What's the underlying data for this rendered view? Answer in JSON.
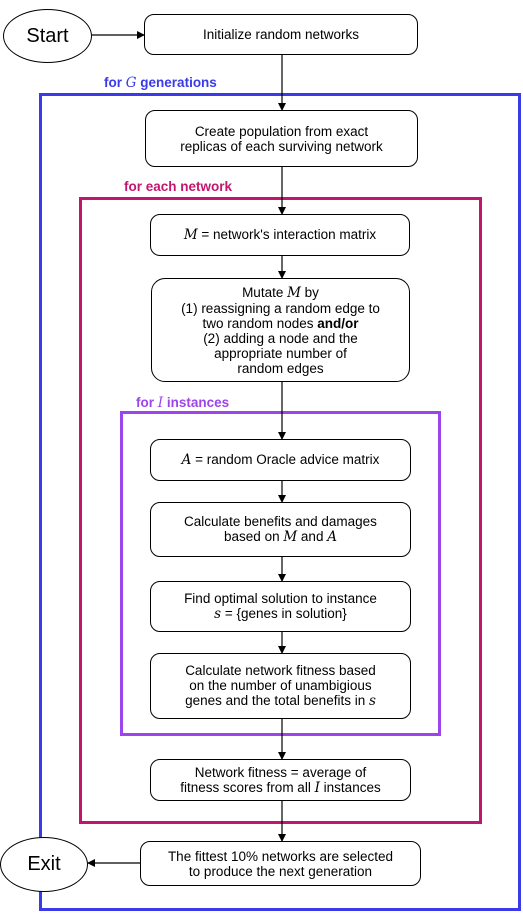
{
  "terminals": {
    "start": "Start",
    "exit": "Exit"
  },
  "loops": {
    "generations": {
      "prefix": "for ",
      "var": "G",
      "suffix": " generations",
      "color": "#3a3ae8"
    },
    "network": {
      "text": "for each network",
      "color": "#c2166e"
    },
    "instances": {
      "prefix": "for ",
      "var": "I",
      "suffix": " instances",
      "color": "#9b45ea"
    }
  },
  "steps": {
    "init": "Initialize random networks",
    "population": [
      "Create population from exact",
      "replicas of each surviving network"
    ],
    "matrix": {
      "var": "M",
      "text": " = network's interaction matrix"
    },
    "mutate": {
      "l1_pre": "Mutate ",
      "l1_var": "M",
      "l1_post": " by",
      "l2": "(1) reassigning a random edge to",
      "l3_pre": "two random nodes ",
      "l3_bold": "and/or",
      "l4": "(2) adding a node and the",
      "l5": "appropriate number of",
      "l6": "random edges"
    },
    "advice": {
      "var": "A",
      "text": " = random Oracle advice matrix"
    },
    "benefits": {
      "l1": "Calculate benefits and damages",
      "l2_pre": "based on ",
      "l2_v1": "M",
      "l2_mid": " and ",
      "l2_v2": "A"
    },
    "optimal": {
      "l1": "Find optimal solution to instance",
      "l2_var": "s",
      "l2_text": " = {genes in solution}"
    },
    "fitness": {
      "l1": "Calculate network fitness based",
      "l2": "on the number of unambigious",
      "l3_pre": "genes and the total benefits in ",
      "l3_var": "s"
    },
    "average": {
      "l1": "Network fitness = average of",
      "l2_pre": "fitness scores from all ",
      "l2_var": "I",
      "l2_post": " instances"
    },
    "select": [
      "The fittest 10% networks are selected",
      "to produce the next generation"
    ]
  }
}
